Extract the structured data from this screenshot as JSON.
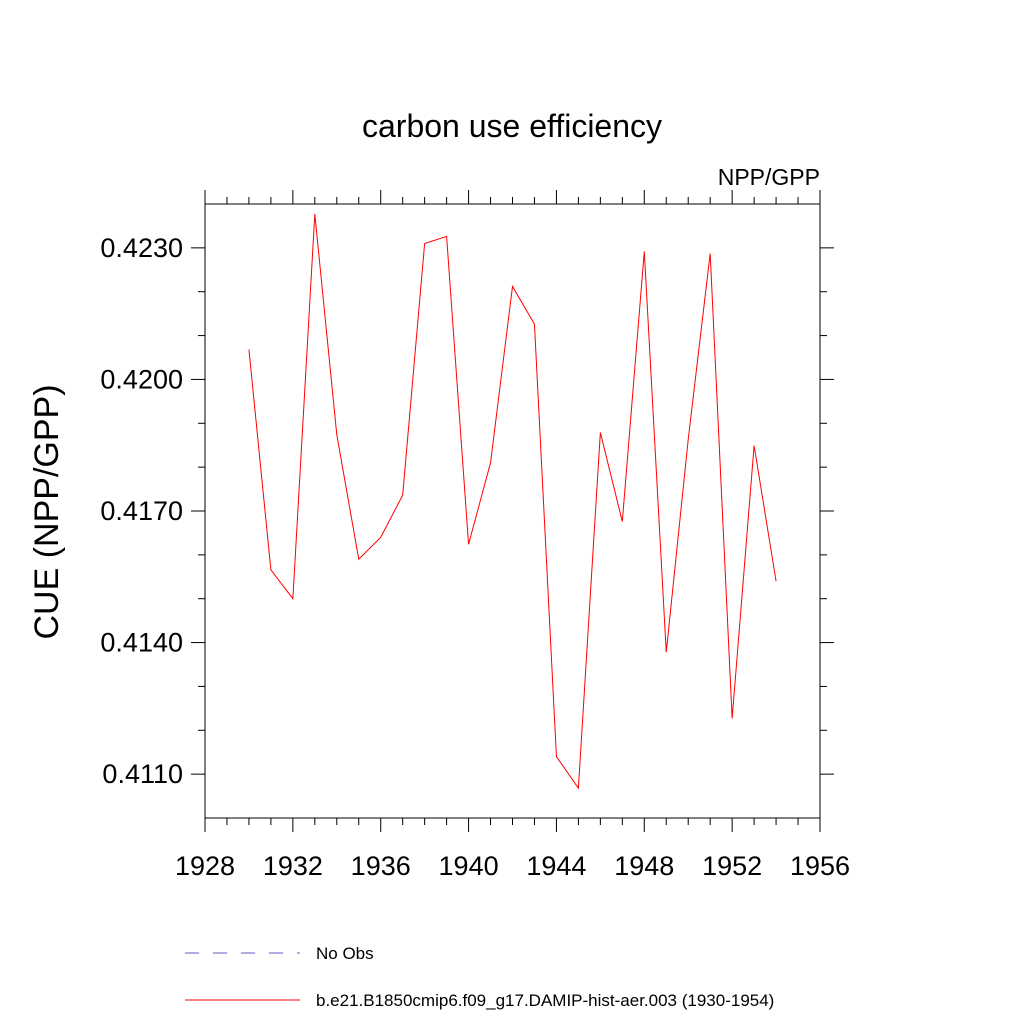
{
  "chart_data": {
    "type": "line",
    "title": "carbon use efficiency",
    "subtitle": "NPP/GPP",
    "xlabel": "",
    "ylabel": "CUE  (NPP/GPP)",
    "xlim": [
      1928,
      1956
    ],
    "ylim": [
      0.41,
      0.424
    ],
    "x_ticks": [
      1928,
      1932,
      1936,
      1940,
      1944,
      1948,
      1952,
      1956
    ],
    "x_tick_labels": [
      "1928",
      "1932",
      "1936",
      "1940",
      "1944",
      "1948",
      "1952",
      "1956"
    ],
    "y_ticks": [
      0.411,
      0.414,
      0.417,
      0.42,
      0.423
    ],
    "y_tick_labels": [
      "0.4110",
      "0.4140",
      "0.4170",
      "0.4200",
      "0.4230"
    ],
    "grid": false,
    "legend_position": "bottom",
    "series": [
      {
        "name": "b.e21.B1850cmip6.f09_g17.DAMIP-hist-aer.003 (1930-1954)",
        "color": "#ff0000",
        "style": "solid",
        "x": [
          1930,
          1931,
          1932,
          1933,
          1934,
          1935,
          1936,
          1937,
          1938,
          1939,
          1940,
          1941,
          1942,
          1943,
          1944,
          1945,
          1946,
          1947,
          1948,
          1949,
          1950,
          1951,
          1952,
          1953,
          1954
        ],
        "y": [
          0.42068,
          0.41566,
          0.415,
          0.42377,
          0.41874,
          0.4159,
          0.4164,
          0.41736,
          0.4231,
          0.42326,
          0.41624,
          0.4181,
          0.42212,
          0.42126,
          0.4114,
          0.41068,
          0.41879,
          0.41676,
          0.42292,
          0.41378,
          0.41863,
          0.42287,
          0.41227,
          0.41849,
          0.4154
        ]
      },
      {
        "name": "No Obs",
        "color": "#6a5acd",
        "style": "dashed",
        "x": [],
        "y": []
      }
    ]
  }
}
